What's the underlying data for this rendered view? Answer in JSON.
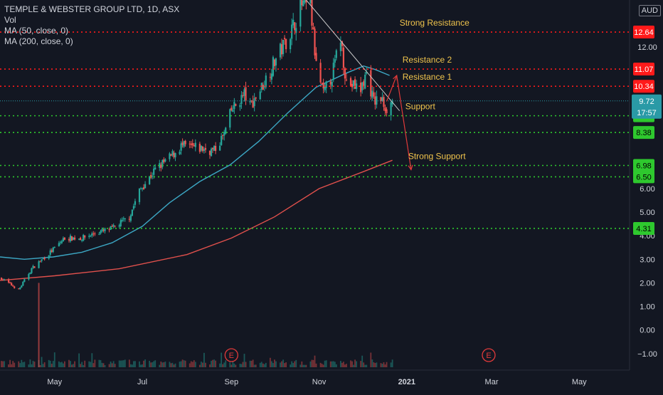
{
  "legend": {
    "title": "TEMPLE & WEBSTER GROUP LTD, 1D, ASX",
    "vol": "Vol",
    "ma50": "MA (50, close, 0)",
    "ma200": "MA (200, close, 0)"
  },
  "currency": "AUD",
  "colors": {
    "background": "#131722",
    "up": "#26a69a",
    "down": "#ef5350",
    "ma50": "#3ca7c4",
    "ma200": "#e0504c",
    "resistance": "#ff1a1a",
    "support": "#2ec82e",
    "last_price": "#2a9aa6",
    "axis_text": "#d1d4dc"
  },
  "chart_data": {
    "type": "candlestick",
    "y_axis": {
      "scale": "linear",
      "range": [
        -1.7,
        14.0
      ],
      "ticks": [
        -1.0,
        0.0,
        1.0,
        2.0,
        3.0,
        4.0,
        5.0,
        6.0,
        12.0
      ],
      "tick_labels": [
        "−1.00",
        "0.00",
        "1.00",
        "2.00",
        "3.00",
        "4.00",
        "5.00",
        "6.00",
        "12.00"
      ]
    },
    "x_axis": {
      "ticks": [
        "2020-05-01",
        "2020-07-01",
        "2020-09-01",
        "2020-11-01",
        "2021-01-01",
        "2021-03-01",
        "2021-05-01"
      ],
      "tick_labels": [
        "May",
        "Jul",
        "Sep",
        "Nov",
        "2021",
        "Mar",
        "May"
      ],
      "range": [
        "2020-03-24",
        "2021-06-05"
      ]
    },
    "price_path": [
      [
        "2020-03-25",
        2.2
      ],
      [
        "2020-04-06",
        1.7
      ],
      [
        "2020-04-15",
        2.6
      ],
      [
        "2020-04-28",
        3.3
      ],
      [
        "2020-05-08",
        3.9
      ],
      [
        "2020-05-20",
        3.9
      ],
      [
        "2020-05-29",
        4.1
      ],
      [
        "2020-06-10",
        4.3
      ],
      [
        "2020-06-22",
        4.8
      ],
      [
        "2020-06-29",
        5.9
      ],
      [
        "2020-07-10",
        6.8
      ],
      [
        "2020-07-20",
        7.3
      ],
      [
        "2020-07-28",
        7.8
      ],
      [
        "2020-08-10",
        7.7
      ],
      [
        "2020-08-20",
        7.6
      ],
      [
        "2020-08-27",
        8.3
      ],
      [
        "2020-09-01",
        9.3
      ],
      [
        "2020-09-10",
        10.0
      ],
      [
        "2020-09-14",
        9.5
      ],
      [
        "2020-09-22",
        10.3
      ],
      [
        "2020-10-01",
        11.4
      ],
      [
        "2020-10-12",
        12.6
      ],
      [
        "2020-10-20",
        13.8
      ],
      [
        "2020-10-26",
        13.7
      ],
      [
        "2020-10-30",
        11.2
      ],
      [
        "2020-11-04",
        10.0
      ],
      [
        "2020-11-10",
        10.8
      ],
      [
        "2020-11-16",
        12.4
      ],
      [
        "2020-11-20",
        10.5
      ],
      [
        "2020-11-30",
        10.2
      ],
      [
        "2020-12-04",
        10.9
      ],
      [
        "2020-12-09",
        9.7
      ],
      [
        "2020-12-14",
        9.8
      ],
      [
        "2020-12-18",
        9.4
      ],
      [
        "2020-12-22",
        9.7
      ]
    ],
    "ma50": [
      [
        "2020-03-24",
        3.1
      ],
      [
        "2020-04-10",
        3.0
      ],
      [
        "2020-04-30",
        3.1
      ],
      [
        "2020-05-20",
        3.3
      ],
      [
        "2020-06-10",
        3.7
      ],
      [
        "2020-07-01",
        4.4
      ],
      [
        "2020-07-20",
        5.4
      ],
      [
        "2020-08-10",
        6.3
      ],
      [
        "2020-08-31",
        7.0
      ],
      [
        "2020-09-20",
        8.0
      ],
      [
        "2020-10-10",
        9.2
      ],
      [
        "2020-10-30",
        10.3
      ],
      [
        "2020-11-20",
        10.9
      ],
      [
        "2020-12-02",
        11.2
      ],
      [
        "2020-12-10",
        11.05
      ],
      [
        "2020-12-20",
        10.8
      ]
    ],
    "ma200": [
      [
        "2020-03-24",
        2.1
      ],
      [
        "2020-05-01",
        2.3
      ],
      [
        "2020-06-15",
        2.6
      ],
      [
        "2020-08-01",
        3.2
      ],
      [
        "2020-09-01",
        3.9
      ],
      [
        "2020-10-01",
        4.8
      ],
      [
        "2020-11-01",
        6.0
      ],
      [
        "2020-12-01",
        6.7
      ],
      [
        "2020-12-22",
        7.2
      ]
    ],
    "levels": [
      {
        "name": "Strong Resistance",
        "value": 12.64,
        "kind": "resistance",
        "label": "12.64"
      },
      {
        "name": "Resistance 2",
        "value": 11.07,
        "kind": "resistance",
        "label": "11.07"
      },
      {
        "name": "Resistance 1",
        "value": 10.34,
        "kind": "resistance",
        "label": "10.34"
      },
      {
        "name": "Support",
        "value": 9.09,
        "kind": "support",
        "label": "9.09"
      },
      {
        "name": "",
        "value": 8.38,
        "kind": "support",
        "label": "8.38"
      },
      {
        "name": "Strong Support",
        "value": 6.98,
        "kind": "support",
        "label": "6.98"
      },
      {
        "name": "",
        "value": 6.5,
        "kind": "support",
        "label": "6.50"
      },
      {
        "name": "",
        "value": 4.31,
        "kind": "support",
        "label": "4.31"
      }
    ],
    "annotations": [
      {
        "label": "Strong Resistance",
        "date": "2020-12-27",
        "value": 12.64
      },
      {
        "label": "Resistance 2",
        "date": "2020-12-29",
        "value": 11.07
      },
      {
        "label": "Resistance 1",
        "date": "2020-12-29",
        "value": 10.34
      },
      {
        "label": "Support",
        "date": "2020-12-31",
        "value": 9.09
      },
      {
        "label": "Strong Support",
        "date": "2021-01-02",
        "value": 6.98
      }
    ],
    "last_price": {
      "value": 9.72,
      "label": "9.72",
      "countdown": "17:57"
    },
    "trendline": {
      "from": [
        "2020-10-23",
        14.0
      ],
      "to": [
        "2020-12-27",
        9.3
      ]
    },
    "arrows": [
      {
        "from": [
          "2020-12-18",
          9.7
        ],
        "to": [
          "2020-12-25",
          10.8
        ],
        "direction": "up"
      },
      {
        "from": [
          "2020-12-25",
          10.8
        ],
        "to": [
          "2021-01-04",
          6.8
        ],
        "direction": "down"
      }
    ],
    "volume": {
      "spike": {
        "date": "2020-04-20",
        "relative": 1.0
      },
      "typical_relative": 0.05
    },
    "events": [
      {
        "label": "E",
        "date": "2020-09-01"
      },
      {
        "label": "E",
        "date": "2021-02-27"
      }
    ],
    "time_cursor_label": "2021"
  }
}
